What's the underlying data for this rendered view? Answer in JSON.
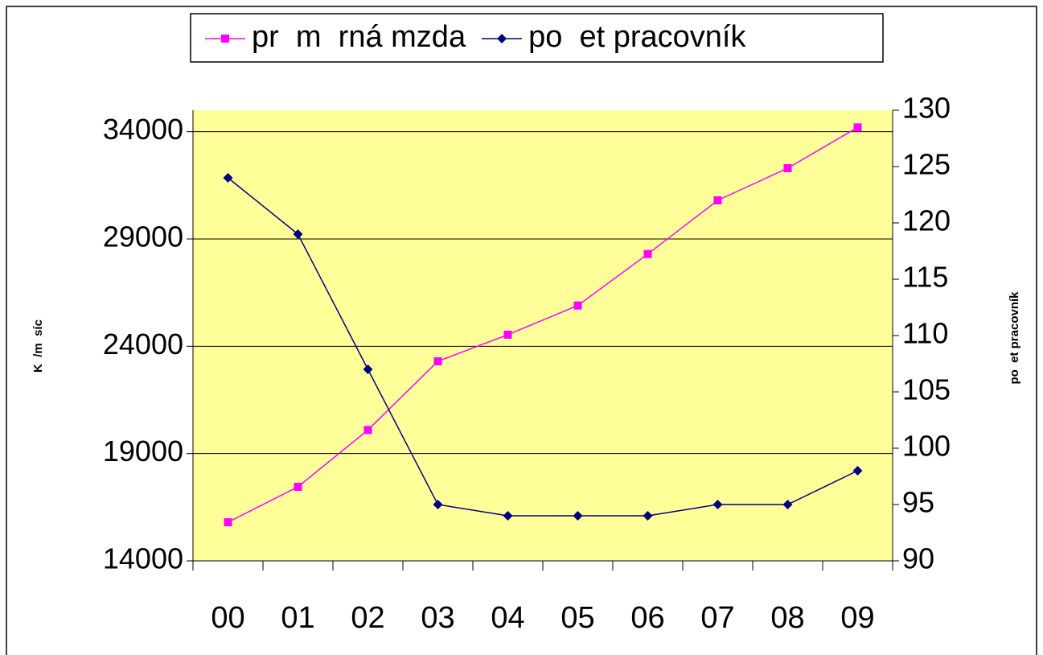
{
  "chart_data": {
    "type": "line",
    "categories": [
      "00",
      "01",
      "02",
      "03",
      "04",
      "05",
      "06",
      "07",
      "08",
      "09"
    ],
    "series": [
      {
        "name": "pr  m  rná mzda",
        "color": "#ff00ff",
        "marker": "square",
        "values": [
          15800,
          17450,
          20100,
          23300,
          24540,
          25900,
          28300,
          30800,
          32300,
          34200
        ]
      },
      {
        "name": "po  et pracovník",
        "color": "#000080",
        "marker": "diamond",
        "axis": "y2",
        "values": [
          124,
          119,
          107,
          95,
          94,
          94,
          94,
          95,
          95,
          98
        ]
      }
    ],
    "ylabel": "K  /m  síc",
    "y2label": "po  et pracovník",
    "ylim": [
      14000,
      35000
    ],
    "yticks": [
      14000,
      19000,
      24000,
      29000,
      34000
    ],
    "y2lim": [
      90,
      130
    ],
    "y2ticks": [
      90,
      95,
      100,
      105,
      110,
      115,
      120,
      125,
      130
    ],
    "grid": true,
    "legend": "top",
    "background": "#ffff99"
  }
}
